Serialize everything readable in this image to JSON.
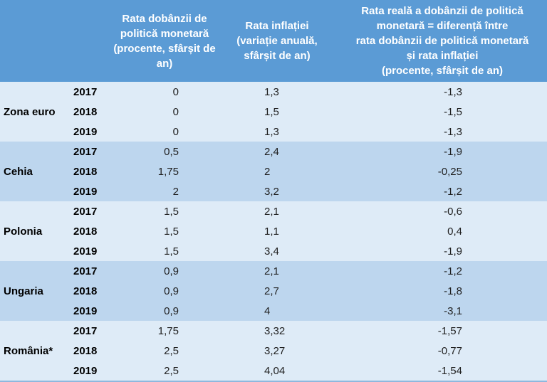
{
  "table": {
    "headers": {
      "policy_rate": "Rata dobânzii de\npolitică monetară\n(procente, sfârșit de\nan)",
      "inflation": "Rata inflației\n(variație anuală,\nsfârșit de an)",
      "real_rate": "Rata reală a dobânzii de politică\nmonetară = diferență între\nrata dobânzii de politică monetară\nși rata inflației\n(procente, sfârșit de an)"
    },
    "groups": [
      {
        "label": "Zona euro",
        "rows": [
          {
            "year": "2017",
            "policy_rate": "0",
            "inflation": "1,3",
            "real_rate": "-1,3"
          },
          {
            "year": "2018",
            "policy_rate": "0",
            "inflation": "1,5",
            "real_rate": "-1,5"
          },
          {
            "year": "2019",
            "policy_rate": "0",
            "inflation": "1,3",
            "real_rate": "-1,3"
          }
        ]
      },
      {
        "label": "Cehia",
        "rows": [
          {
            "year": "2017",
            "policy_rate": "0,5",
            "inflation": "2,4",
            "real_rate": "-1,9"
          },
          {
            "year": "2018",
            "policy_rate": "1,75",
            "inflation": "2",
            "real_rate": "-0,25"
          },
          {
            "year": "2019",
            "policy_rate": "2",
            "inflation": "3,2",
            "real_rate": "-1,2"
          }
        ]
      },
      {
        "label": "Polonia",
        "rows": [
          {
            "year": "2017",
            "policy_rate": "1,5",
            "inflation": "2,1",
            "real_rate": "-0,6"
          },
          {
            "year": "2018",
            "policy_rate": "1,5",
            "inflation": "1,1",
            "real_rate": "0,4"
          },
          {
            "year": "2019",
            "policy_rate": "1,5",
            "inflation": "3,4",
            "real_rate": "-1,9"
          }
        ]
      },
      {
        "label": "Ungaria",
        "rows": [
          {
            "year": "2017",
            "policy_rate": "0,9",
            "inflation": "2,1",
            "real_rate": "-1,2"
          },
          {
            "year": "2018",
            "policy_rate": "0,9",
            "inflation": "2,7",
            "real_rate": "-1,8"
          },
          {
            "year": "2019",
            "policy_rate": "0,9",
            "inflation": "4",
            "real_rate": "-3,1"
          }
        ]
      },
      {
        "label": "România*",
        "rows": [
          {
            "year": "2017",
            "policy_rate": "1,75",
            "inflation": "3,32",
            "real_rate": "-1,57"
          },
          {
            "year": "2018",
            "policy_rate": "2,5",
            "inflation": "3,27",
            "real_rate": "-0,77"
          },
          {
            "year": "2019",
            "policy_rate": "2,5",
            "inflation": "4,04",
            "real_rate": "-1,54"
          }
        ]
      }
    ]
  },
  "colors": {
    "header_bg": "#5B9BD5",
    "header_text": "#FFFFFF",
    "band_light": "#DEEBF7",
    "band_dark": "#BDD6EE",
    "body_text": "#1F1F1F",
    "bottom_border": "#8FB8DE"
  },
  "chart_data": {
    "type": "table",
    "columns": [
      "",
      "",
      "Rata dobânzii de politică monetară (procente, sfârșit de an)",
      "Rata inflației (variație anuală, sfârșit de an)",
      "Rata reală a dobânzii de politică monetară = diferență între rata dobânzii de politică monetară și rata inflației (procente, sfârșit de an)"
    ],
    "rows": [
      [
        "Zona euro",
        2017,
        0,
        1.3,
        -1.3
      ],
      [
        "Zona euro",
        2018,
        0,
        1.5,
        -1.5
      ],
      [
        "Zona euro",
        2019,
        0,
        1.3,
        -1.3
      ],
      [
        "Cehia",
        2017,
        0.5,
        2.4,
        -1.9
      ],
      [
        "Cehia",
        2018,
        1.75,
        2,
        -0.25
      ],
      [
        "Cehia",
        2019,
        2,
        3.2,
        -1.2
      ],
      [
        "Polonia",
        2017,
        1.5,
        2.1,
        -0.6
      ],
      [
        "Polonia",
        2018,
        1.5,
        1.1,
        0.4
      ],
      [
        "Polonia",
        2019,
        1.5,
        3.4,
        -1.9
      ],
      [
        "Ungaria",
        2017,
        0.9,
        2.1,
        -1.2
      ],
      [
        "Ungaria",
        2018,
        0.9,
        2.7,
        -1.8
      ],
      [
        "Ungaria",
        2019,
        0.9,
        4,
        -3.1
      ],
      [
        "România*",
        2017,
        1.75,
        3.32,
        -1.57
      ],
      [
        "România*",
        2018,
        2.5,
        3.27,
        -0.77
      ],
      [
        "România*",
        2019,
        2.5,
        4.04,
        -1.54
      ]
    ]
  }
}
